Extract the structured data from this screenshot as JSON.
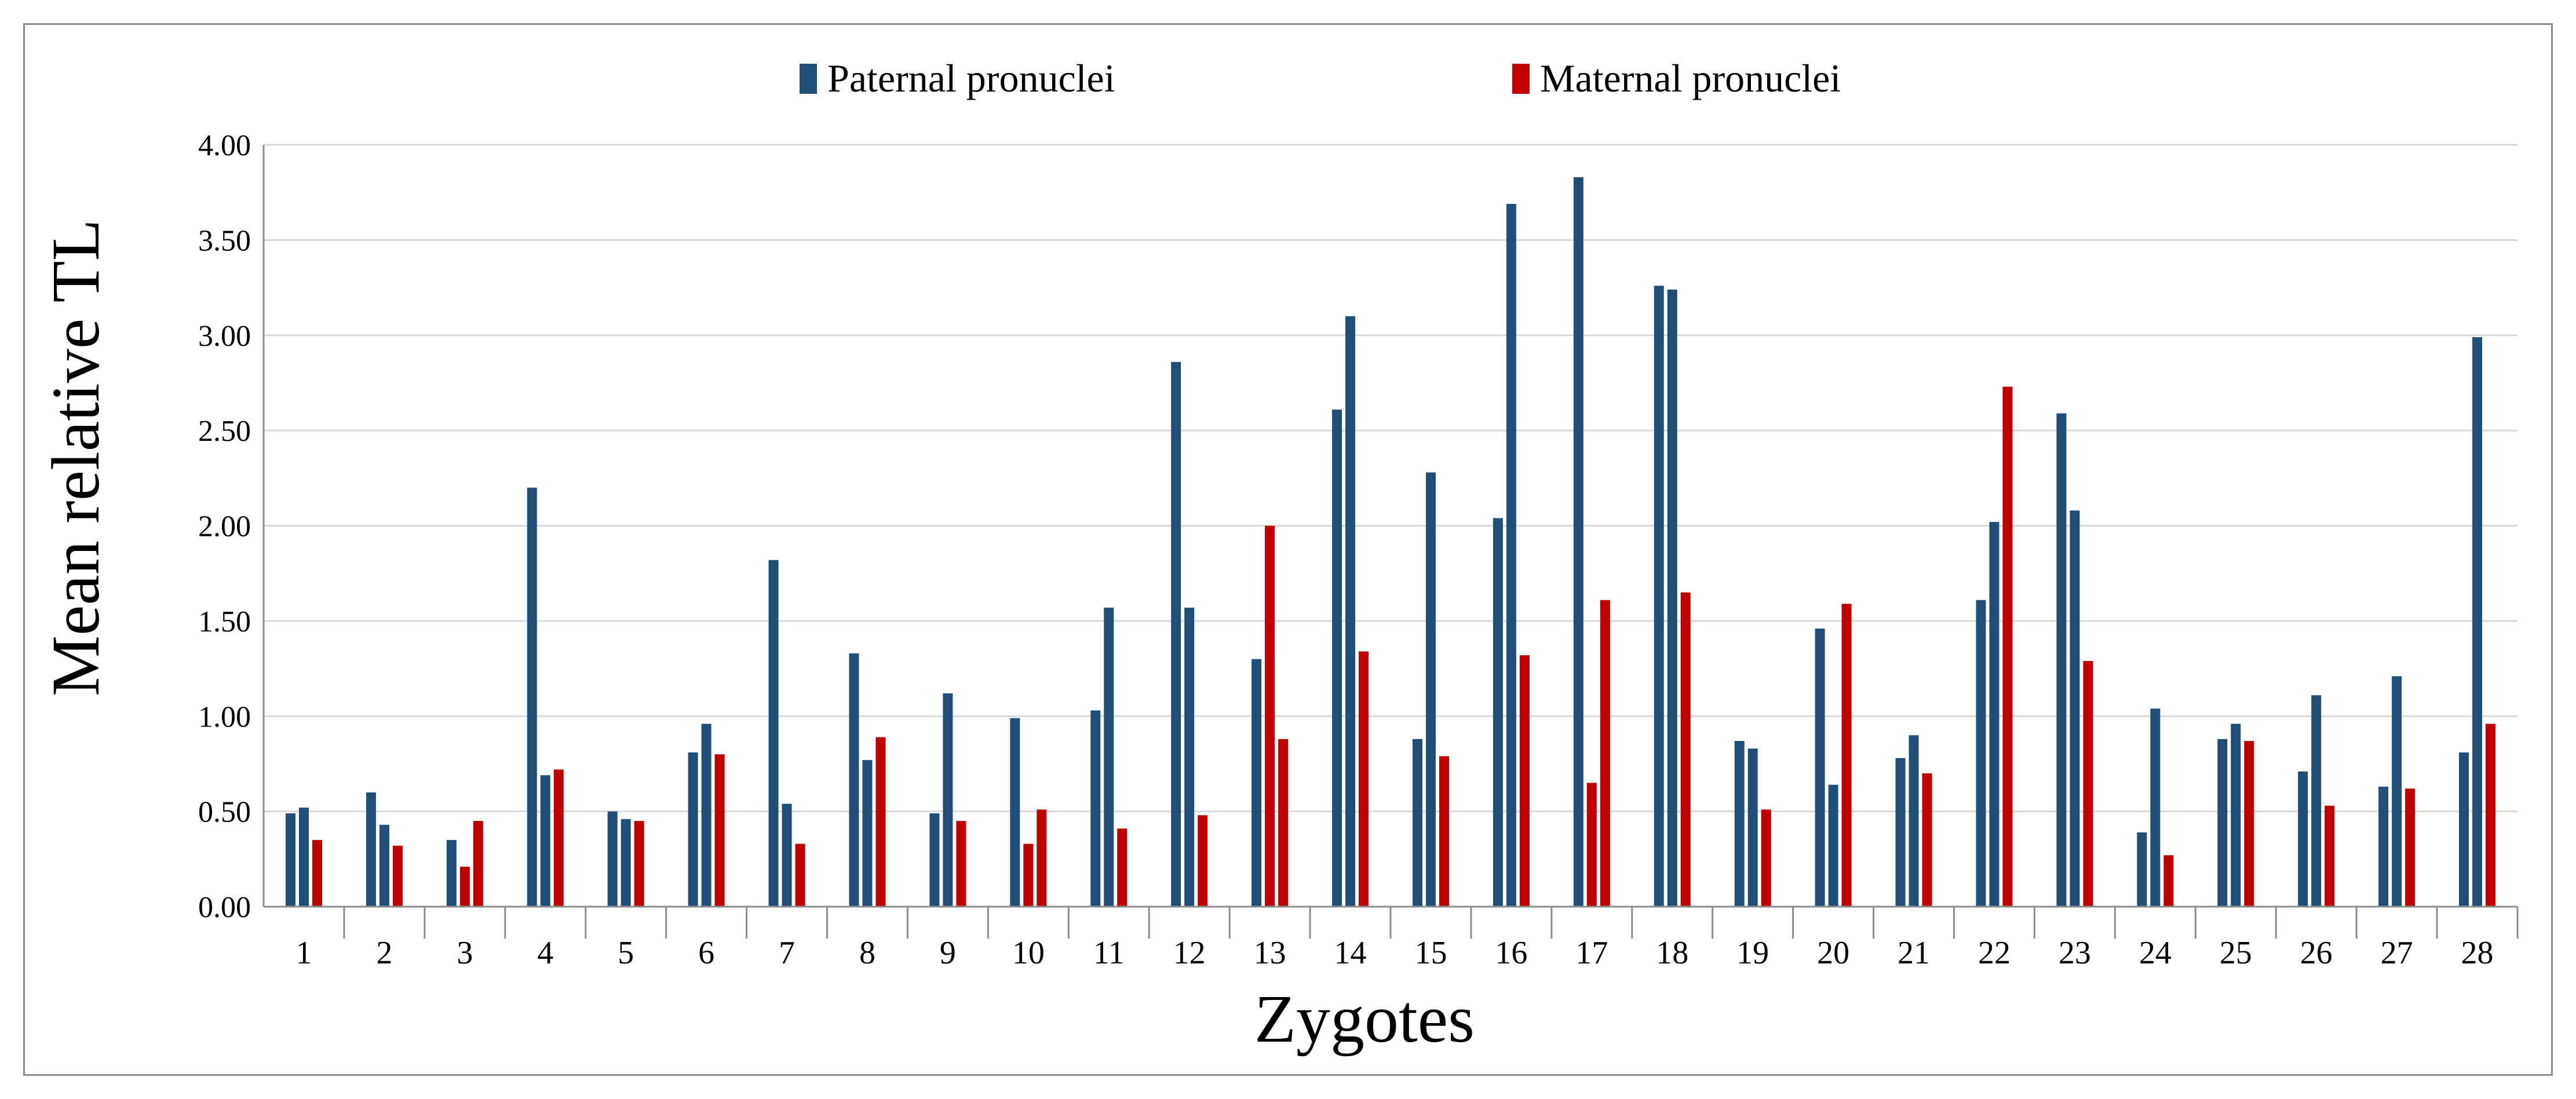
{
  "chart_data": {
    "type": "bar",
    "title": "",
    "xlabel": "Zygotes",
    "ylabel": "Mean relative  TL",
    "ylim": [
      0,
      4
    ],
    "yticks": [
      "0.00",
      "0.50",
      "1.00",
      "1.50",
      "2.00",
      "2.50",
      "3.00",
      "3.50",
      "4.00"
    ],
    "grid": true,
    "legend_position": "top-center",
    "series": [
      {
        "name": "Paternal pronuclei",
        "color": "#1f4e79"
      },
      {
        "name": "Maternal pronuclei",
        "color": "#c00000"
      }
    ],
    "categories": [
      "1",
      "2",
      "3",
      "4",
      "5",
      "6",
      "7",
      "8",
      "9",
      "10",
      "11",
      "12",
      "13",
      "14",
      "15",
      "16",
      "17",
      "18",
      "19",
      "20",
      "21",
      "22",
      "23",
      "24",
      "25",
      "26",
      "27",
      "28"
    ],
    "bars": [
      {
        "category": "1",
        "values": [
          0.49,
          0.52
        ],
        "series": [
          "Paternal pronuclei",
          "Paternal pronuclei"
        ],
        "extra": [
          {
            "series": "Maternal pronuclei",
            "value": 0.35
          }
        ]
      },
      {
        "category": "2",
        "values": [
          0.6,
          0.43
        ],
        "series": [
          "Paternal pronuclei",
          "Paternal pronuclei"
        ],
        "extra": [
          {
            "series": "Maternal pronuclei",
            "value": 0.32
          }
        ]
      }
    ],
    "groups": [
      [
        {
          "s": 0,
          "v": 0.49
        },
        {
          "s": 0,
          "v": 0.52
        },
        {
          "s": 1,
          "v": 0.35
        }
      ],
      [
        {
          "s": 0,
          "v": 0.6
        },
        {
          "s": 0,
          "v": 0.43
        },
        {
          "s": 1,
          "v": 0.32
        }
      ],
      [
        {
          "s": 0,
          "v": 0.35
        },
        {
          "s": 1,
          "v": 0.21
        },
        {
          "s": 1,
          "v": 0.45
        }
      ],
      [
        {
          "s": 0,
          "v": 2.2
        },
        {
          "s": 0,
          "v": 0.69
        },
        {
          "s": 1,
          "v": 0.72
        }
      ],
      [
        {
          "s": 0,
          "v": 0.5
        },
        {
          "s": 0,
          "v": 0.46
        },
        {
          "s": 1,
          "v": 0.45
        }
      ],
      [
        {
          "s": 0,
          "v": 0.81
        },
        {
          "s": 0,
          "v": 0.96
        },
        {
          "s": 1,
          "v": 0.8
        }
      ],
      [
        {
          "s": 0,
          "v": 1.82
        },
        {
          "s": 0,
          "v": 0.54
        },
        {
          "s": 1,
          "v": 0.33
        }
      ],
      [
        {
          "s": 0,
          "v": 1.33
        },
        {
          "s": 0,
          "v": 0.77
        },
        {
          "s": 1,
          "v": 0.89
        }
      ],
      [
        {
          "s": 0,
          "v": 0.49
        },
        {
          "s": 0,
          "v": 1.12
        },
        {
          "s": 1,
          "v": 0.45
        }
      ],
      [
        {
          "s": 0,
          "v": 0.99
        },
        {
          "s": 1,
          "v": 0.33
        },
        {
          "s": 1,
          "v": 0.51
        }
      ],
      [
        {
          "s": 0,
          "v": 1.03
        },
        {
          "s": 0,
          "v": 1.57
        },
        {
          "s": 1,
          "v": 0.41
        }
      ],
      [
        {
          "s": 0,
          "v": 2.86
        },
        {
          "s": 0,
          "v": 1.57
        },
        {
          "s": 1,
          "v": 0.48
        }
      ],
      [
        {
          "s": 0,
          "v": 1.3
        },
        {
          "s": 1,
          "v": 2.0
        },
        {
          "s": 1,
          "v": 0.88
        }
      ],
      [
        {
          "s": 0,
          "v": 2.61
        },
        {
          "s": 0,
          "v": 3.1
        },
        {
          "s": 1,
          "v": 1.34
        }
      ],
      [
        {
          "s": 0,
          "v": 0.88
        },
        {
          "s": 0,
          "v": 2.28
        },
        {
          "s": 1,
          "v": 0.79
        }
      ],
      [
        {
          "s": 0,
          "v": 2.04
        },
        {
          "s": 0,
          "v": 3.69
        },
        {
          "s": 1,
          "v": 1.32
        }
      ],
      [
        {
          "s": 0,
          "v": 3.83
        },
        {
          "s": 1,
          "v": 0.65
        },
        {
          "s": 1,
          "v": 1.61
        }
      ],
      [
        {
          "s": 0,
          "v": 3.26
        },
        {
          "s": 0,
          "v": 3.24
        },
        {
          "s": 1,
          "v": 1.65
        }
      ],
      [
        {
          "s": 0,
          "v": 0.87
        },
        {
          "s": 0,
          "v": 0.83
        },
        {
          "s": 1,
          "v": 0.51
        }
      ],
      [
        {
          "s": 0,
          "v": 1.46
        },
        {
          "s": 0,
          "v": 0.64
        },
        {
          "s": 1,
          "v": 1.59
        }
      ],
      [
        {
          "s": 0,
          "v": 0.78
        },
        {
          "s": 0,
          "v": 0.9
        },
        {
          "s": 1,
          "v": 0.7
        }
      ],
      [
        {
          "s": 0,
          "v": 1.61
        },
        {
          "s": 0,
          "v": 2.02
        },
        {
          "s": 1,
          "v": 2.73
        }
      ],
      [
        {
          "s": 0,
          "v": 2.59
        },
        {
          "s": 0,
          "v": 2.08
        },
        {
          "s": 1,
          "v": 1.29
        }
      ],
      [
        {
          "s": 0,
          "v": 0.39
        },
        {
          "s": 0,
          "v": 1.04
        },
        {
          "s": 1,
          "v": 0.27
        }
      ],
      [
        {
          "s": 0,
          "v": 0.88
        },
        {
          "s": 0,
          "v": 0.96
        },
        {
          "s": 1,
          "v": 0.87
        }
      ],
      [
        {
          "s": 0,
          "v": 0.71
        },
        {
          "s": 0,
          "v": 1.11
        },
        {
          "s": 1,
          "v": 0.53
        }
      ],
      [
        {
          "s": 0,
          "v": 0.63
        },
        {
          "s": 0,
          "v": 1.21
        },
        {
          "s": 1,
          "v": 0.62
        }
      ],
      [
        {
          "s": 0,
          "v": 0.81
        },
        {
          "s": 0,
          "v": 2.99
        },
        {
          "s": 1,
          "v": 0.96
        }
      ]
    ]
  }
}
